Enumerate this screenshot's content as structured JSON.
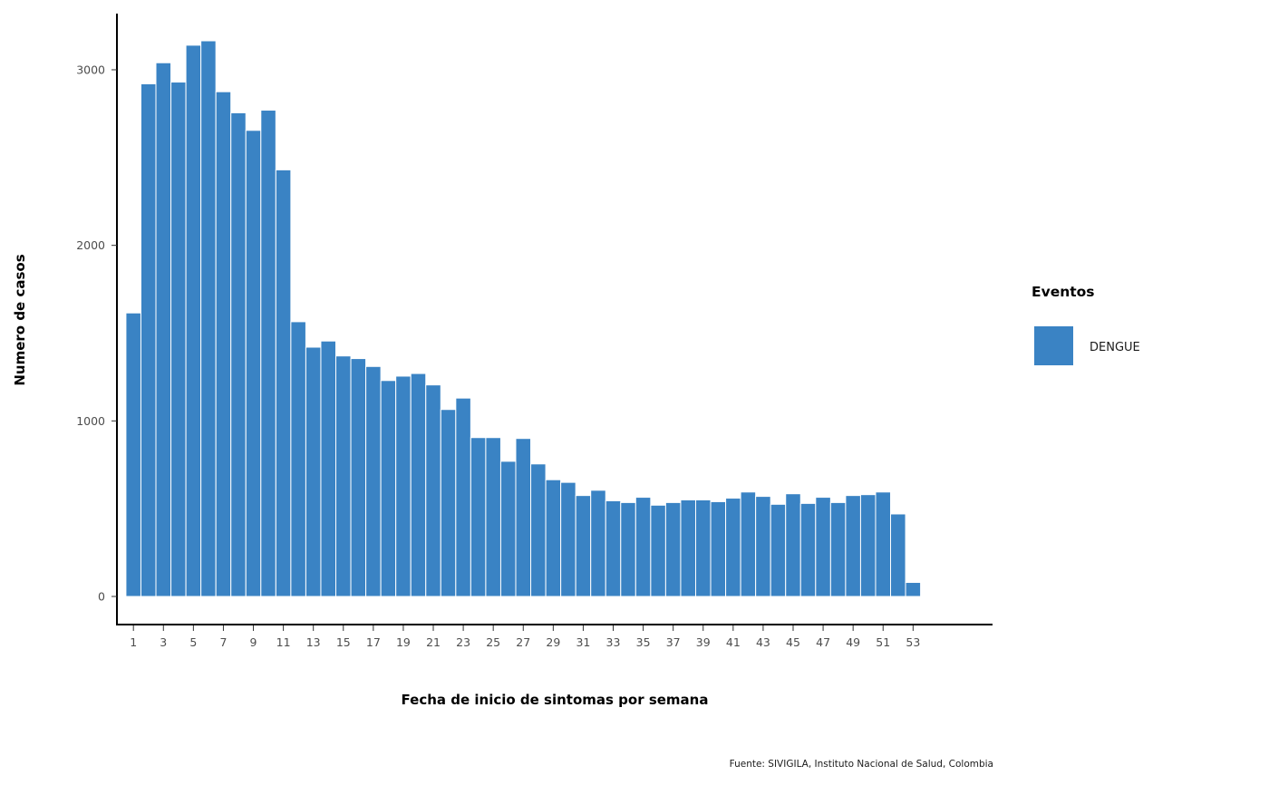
{
  "chart_data": {
    "type": "bar",
    "x": [
      1,
      2,
      3,
      4,
      5,
      6,
      7,
      8,
      9,
      10,
      11,
      12,
      13,
      14,
      15,
      16,
      17,
      18,
      19,
      20,
      21,
      22,
      23,
      24,
      25,
      26,
      27,
      28,
      29,
      30,
      31,
      32,
      33,
      34,
      35,
      36,
      37,
      38,
      39,
      40,
      41,
      42,
      43,
      44,
      45,
      46,
      47,
      48,
      49,
      50,
      51,
      52,
      53
    ],
    "series": [
      {
        "name": "DENGUE",
        "color": "#3a83c4",
        "values": [
          1615,
          2920,
          3040,
          2930,
          3140,
          3165,
          2875,
          2755,
          2655,
          2770,
          2430,
          1565,
          1420,
          1455,
          1370,
          1355,
          1310,
          1230,
          1255,
          1270,
          1205,
          1065,
          1130,
          905,
          905,
          770,
          900,
          755,
          665,
          650,
          575,
          605,
          545,
          535,
          565,
          520,
          535,
          550,
          550,
          540,
          560,
          595,
          570,
          525,
          585,
          530,
          565,
          535,
          575,
          580,
          595,
          470,
          80
        ]
      }
    ],
    "xlabel": "Fecha de inicio de sintomas por semana",
    "ylabel": "Numero de casos",
    "x_tick_labels": [
      "1",
      "3",
      "5",
      "7",
      "9",
      "11",
      "13",
      "15",
      "17",
      "19",
      "21",
      "23",
      "25",
      "27",
      "29",
      "31",
      "33",
      "35",
      "37",
      "39",
      "41",
      "43",
      "45",
      "47",
      "49",
      "51",
      "53"
    ],
    "y_tick_labels": [
      "0",
      "1000",
      "2000",
      "3000"
    ],
    "y_ticks": [
      0,
      1000,
      2000,
      3000
    ],
    "ylim": [
      -160,
      3320
    ],
    "xlim": [
      -0.1,
      58.3
    ],
    "grid": false,
    "legend": {
      "title": "Eventos",
      "position": "right",
      "entries": [
        "DENGUE"
      ]
    },
    "caption": "Fuente: SIVIGILA, Instituto Nacional de Salud, Colombia"
  }
}
